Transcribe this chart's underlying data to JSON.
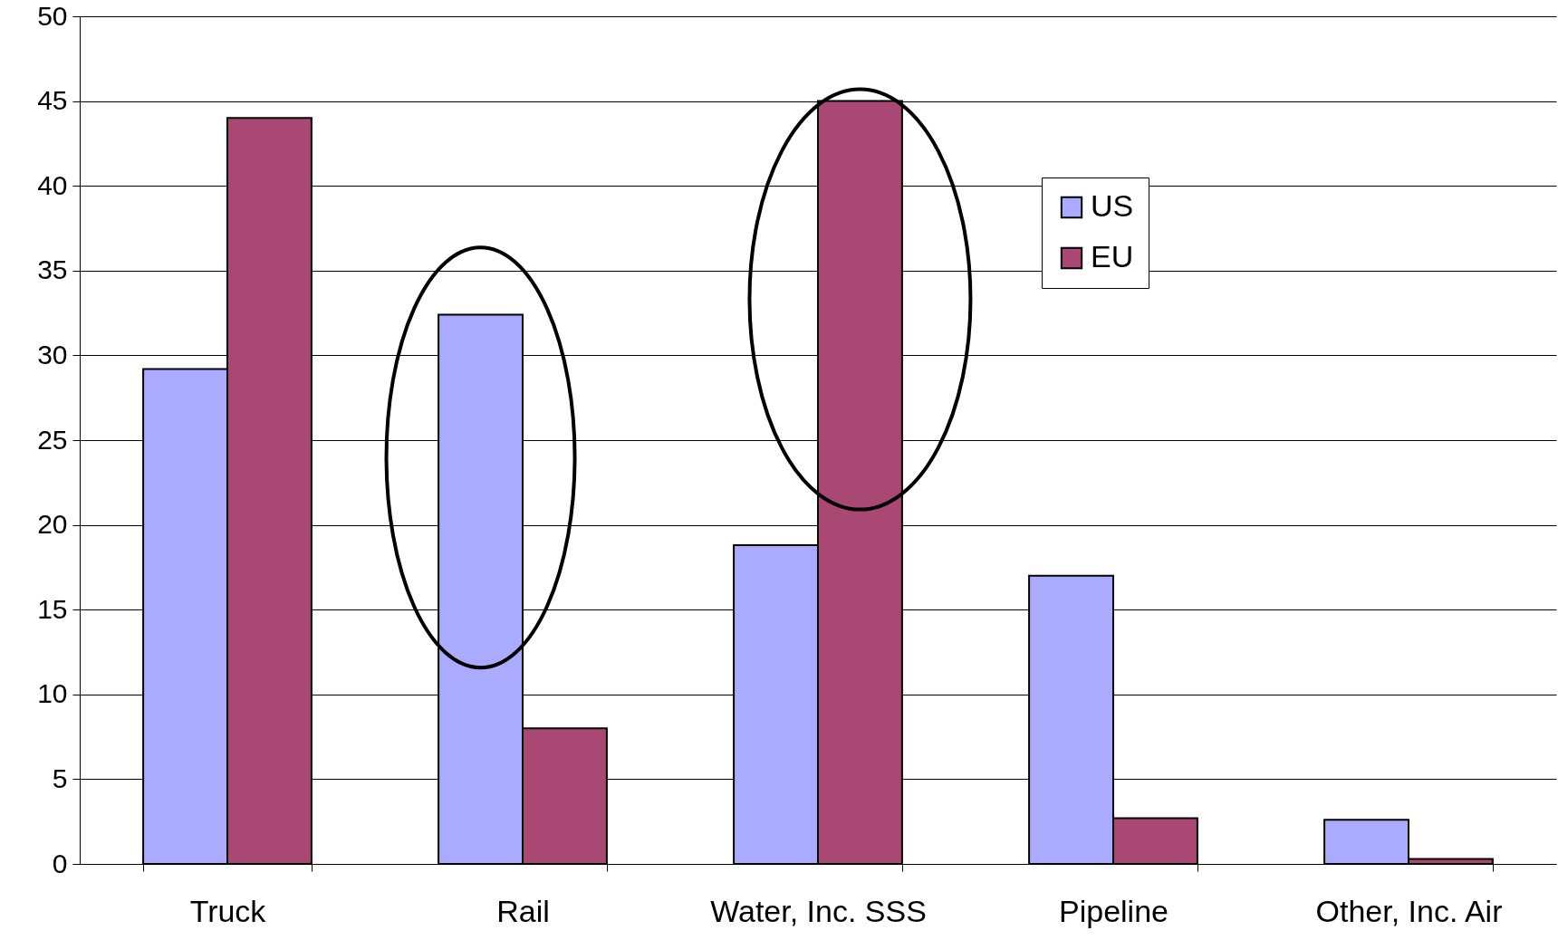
{
  "chart_data": {
    "type": "bar",
    "categories": [
      "Truck",
      "Rail",
      "Water, Inc. SSS",
      "Pipeline",
      "Other, Inc. Air"
    ],
    "series": [
      {
        "name": "US",
        "color": "#aaaaff",
        "values": [
          29.2,
          32.4,
          18.8,
          17.0,
          2.6
        ]
      },
      {
        "name": "EU",
        "color": "#a84873",
        "values": [
          44.0,
          8.0,
          45.0,
          2.7,
          0.3
        ]
      }
    ],
    "ylim": [
      0,
      50
    ],
    "yticks": [
      0,
      5,
      10,
      15,
      20,
      25,
      30,
      35,
      40,
      45,
      50
    ],
    "grid": "y",
    "legend": "top right"
  }
}
